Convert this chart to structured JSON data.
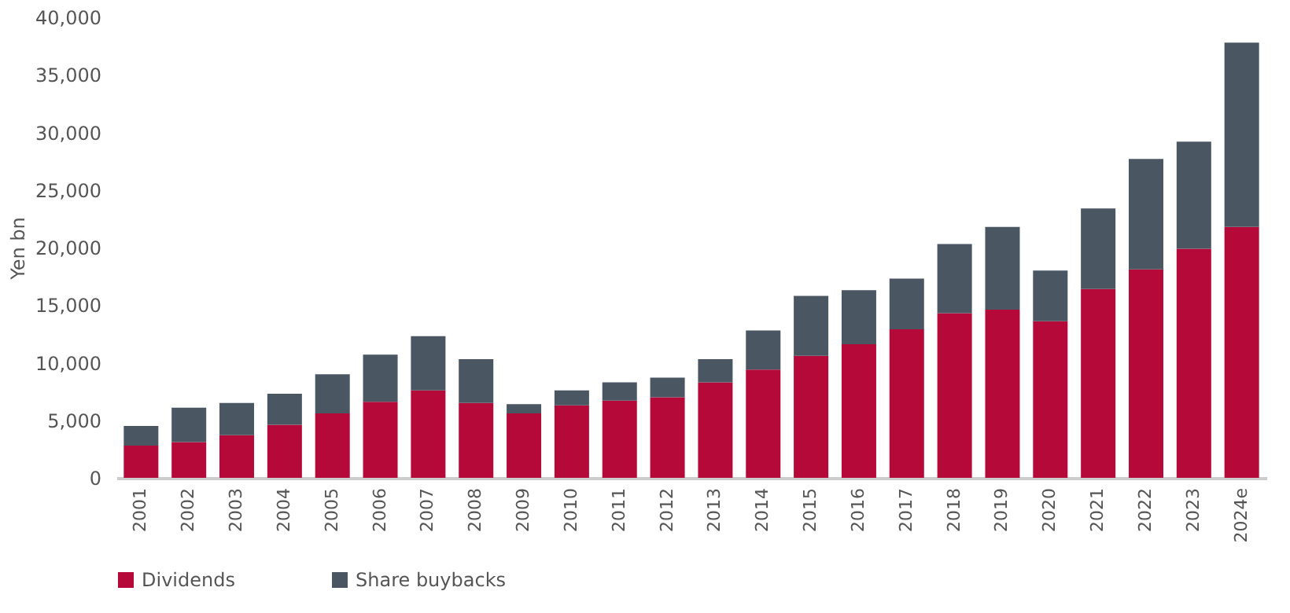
{
  "chart_data": {
    "type": "bar",
    "stacked": true,
    "ylabel": "Yen bn",
    "categories": [
      "2001",
      "2002",
      "2003",
      "2004",
      "2005",
      "2006",
      "2007",
      "2008",
      "2009",
      "2010",
      "2011",
      "2012",
      "2013",
      "2014",
      "2015",
      "2016",
      "2017",
      "2018",
      "2019",
      "2020",
      "2021",
      "2022",
      "2023",
      "2024e"
    ],
    "series": [
      {
        "name": "Dividends",
        "color": "#b5093a",
        "values": [
          2800,
          3100,
          3700,
          4600,
          5600,
          6600,
          7600,
          6500,
          5600,
          6300,
          6700,
          7000,
          8300,
          9400,
          10600,
          11600,
          12900,
          14300,
          14600,
          13600,
          16400,
          18100,
          19900,
          21800
        ]
      },
      {
        "name": "Share buybacks",
        "color": "#4a5661",
        "values": [
          1700,
          3000,
          2800,
          2700,
          3400,
          4100,
          4700,
          3800,
          800,
          1300,
          1600,
          1700,
          2000,
          3400,
          5200,
          4700,
          4400,
          6000,
          7200,
          4400,
          7000,
          9600,
          9300,
          16000
        ]
      }
    ],
    "ylim": [
      0,
      40000
    ],
    "yticks": [
      0,
      {
        "value": 5000,
        "label": "5,000"
      },
      {
        "value": 10000,
        "label": "10,000"
      },
      {
        "value": 15000,
        "label": "15,000"
      },
      {
        "value": 20000,
        "label": "20,000"
      },
      {
        "value": 25000,
        "label": "25,000"
      },
      {
        "value": 30000,
        "label": "30,000"
      },
      {
        "value": 35000,
        "label": "35,000"
      },
      {
        "value": 40000,
        "label": "40,000"
      }
    ],
    "grid": false,
    "legend": "bottom"
  }
}
